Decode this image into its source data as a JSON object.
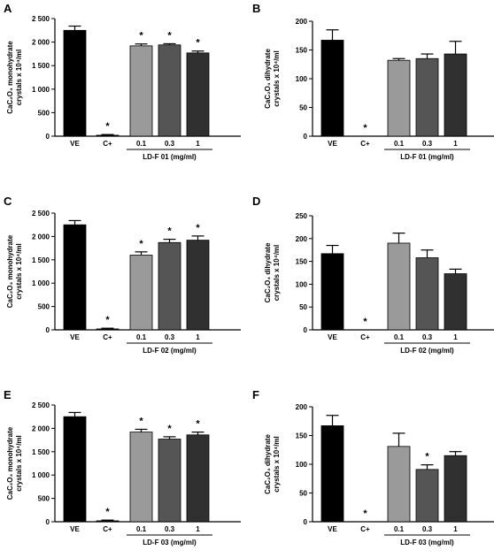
{
  "chart_data": [
    {
      "type": "bar",
      "panel": "A",
      "ylabel_main": "CaC₂O₄ monohydrate",
      "ylabel_sub": "crystals x 10⁴/ml",
      "ylim": [
        0,
        2500
      ],
      "yticks": [
        "0",
        "500",
        "1 000",
        "1 500",
        "2 000",
        "2 500"
      ],
      "categories": [
        "VE",
        "C+",
        "0.1",
        "0.3",
        "1"
      ],
      "values": [
        2250,
        20,
        1920,
        1940,
        1770
      ],
      "errors": [
        90,
        15,
        40,
        25,
        40
      ],
      "significant": [
        false,
        true,
        true,
        true,
        true
      ],
      "colors": [
        "#000000",
        "#000000",
        "#9a9a9a",
        "#555555",
        "#303030"
      ],
      "group_label": "LD-F 01 (mg/ml)"
    },
    {
      "type": "bar",
      "panel": "B",
      "ylabel_main": "CaC₂O₄ dihydrate",
      "ylabel_sub": "crystals x 10⁴/ml",
      "ylim": [
        0,
        200
      ],
      "yticks": [
        "0",
        "50",
        "100",
        "150",
        "200"
      ],
      "categories": [
        "VE",
        "C+",
        "0.1",
        "0.3",
        "1"
      ],
      "values": [
        167,
        0,
        132,
        135,
        143
      ],
      "errors": [
        18,
        0,
        3,
        8,
        22
      ],
      "significant": [
        false,
        true,
        false,
        false,
        false
      ],
      "colors": [
        "#000000",
        "#000000",
        "#9a9a9a",
        "#555555",
        "#303030"
      ],
      "group_label": "LD-F 01 (mg/ml)"
    },
    {
      "type": "bar",
      "panel": "C",
      "ylabel_main": "CaC₂O₄ monohydrate",
      "ylabel_sub": "crystals x 10⁴/ml",
      "ylim": [
        0,
        2500
      ],
      "yticks": [
        "0",
        "500",
        "1 000",
        "1 500",
        "2 000",
        "2 500"
      ],
      "categories": [
        "VE",
        "C+",
        "0.1",
        "0.3",
        "1"
      ],
      "values": [
        2250,
        20,
        1600,
        1870,
        1920
      ],
      "errors": [
        90,
        15,
        70,
        70,
        90
      ],
      "significant": [
        false,
        true,
        true,
        true,
        true
      ],
      "colors": [
        "#000000",
        "#000000",
        "#9a9a9a",
        "#555555",
        "#303030"
      ],
      "group_label": "LD-F 02 (mg/ml)"
    },
    {
      "type": "bar",
      "panel": "D",
      "ylabel_main": "CaC₂O₄ dihydrate",
      "ylabel_sub": "crystals x 10⁴/ml",
      "ylim": [
        0,
        250
      ],
      "yticks": [
        "0",
        "50",
        "100",
        "150",
        "200",
        "250"
      ],
      "categories": [
        "VE",
        "C+",
        "0.1",
        "0.3",
        "1"
      ],
      "values": [
        167,
        0,
        190,
        158,
        123
      ],
      "errors": [
        18,
        0,
        22,
        17,
        10
      ],
      "significant": [
        false,
        true,
        false,
        false,
        false
      ],
      "colors": [
        "#000000",
        "#000000",
        "#9a9a9a",
        "#555555",
        "#303030"
      ],
      "group_label": "LD-F 02 (mg/ml)"
    },
    {
      "type": "bar",
      "panel": "E",
      "ylabel_main": "CaC₂O₄ monohydrate",
      "ylabel_sub": "crystals x 10⁴/ml",
      "ylim": [
        0,
        2500
      ],
      "yticks": [
        "0",
        "500",
        "1 000",
        "1 500",
        "2 000",
        "2 500"
      ],
      "categories": [
        "VE",
        "C+",
        "0.1",
        "0.3",
        "1"
      ],
      "values": [
        2250,
        20,
        1920,
        1770,
        1860
      ],
      "errors": [
        90,
        15,
        60,
        50,
        60
      ],
      "significant": [
        false,
        true,
        true,
        true,
        true
      ],
      "colors": [
        "#000000",
        "#000000",
        "#9a9a9a",
        "#555555",
        "#303030"
      ],
      "group_label": "LD-F 03 (mg/ml)"
    },
    {
      "type": "bar",
      "panel": "F",
      "ylabel_main": "CaC₂O₄ dihydrate",
      "ylabel_sub": "crystals x 10⁴/ml",
      "ylim": [
        0,
        200
      ],
      "yticks": [
        "0",
        "50",
        "100",
        "150",
        "200"
      ],
      "categories": [
        "VE",
        "C+",
        "0.1",
        "0.3",
        "1"
      ],
      "values": [
        167,
        0,
        131,
        91,
        115
      ],
      "errors": [
        18,
        0,
        23,
        8,
        7
      ],
      "significant": [
        false,
        true,
        false,
        true,
        false
      ],
      "colors": [
        "#000000",
        "#000000",
        "#9a9a9a",
        "#555555",
        "#303030"
      ],
      "group_label": "LD-F 03 (mg/ml)"
    }
  ],
  "significance_marker": "*"
}
